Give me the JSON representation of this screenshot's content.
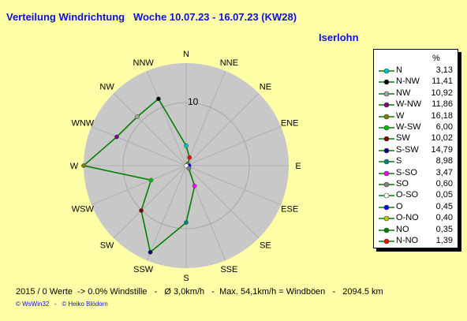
{
  "header": {
    "title": "Verteilung Windrichtung   Woche 10.07.23 - 16.07.23 (KW28)",
    "location": "Iserlohn"
  },
  "legend": {
    "pct_header": "%"
  },
  "footer": {
    "text": "2015 / 0 Werte  -> 0.0% Windstille   -   Ø 3,0km/h   -  Max. 54,1km/h = Windböen   -   2094.5 km",
    "copyright": "© WsWin32   -   © Heiko Blödorn"
  },
  "chart_data": {
    "type": "radar",
    "title": "Verteilung Windrichtung   Woche 10.07.23 - 16.07.23 (KW28)",
    "unit": "%",
    "ring_label": "10",
    "rmax": 16.18,
    "line_color": "#008000",
    "categories": [
      "N",
      "NNE",
      "NE",
      "ENE",
      "E",
      "ESE",
      "SE",
      "SSE",
      "S",
      "SSW",
      "SW",
      "WSW",
      "W",
      "WNW",
      "NW",
      "NNW"
    ],
    "values": [
      3.13,
      1.39,
      0.35,
      0.4,
      0.45,
      0.05,
      0.6,
      3.47,
      8.98,
      14.79,
      10.02,
      6.0,
      16.18,
      11.86,
      10.92,
      11.41
    ],
    "legend": [
      {
        "label": "N",
        "value": "3,13",
        "color": "#00c0c0"
      },
      {
        "label": "N-NW",
        "value": "11,41",
        "color": "#000000"
      },
      {
        "label": "NW",
        "value": "10,92",
        "color": "#a0a0a0"
      },
      {
        "label": "W-NW",
        "value": "11,86",
        "color": "#800080"
      },
      {
        "label": "W",
        "value": "16,18",
        "color": "#808000"
      },
      {
        "label": "W-SW",
        "value": "6,00",
        "color": "#00c000"
      },
      {
        "label": "SW",
        "value": "10,02",
        "color": "#800000"
      },
      {
        "label": "S-SW",
        "value": "14,79",
        "color": "#000080"
      },
      {
        "label": "S",
        "value": "8,98",
        "color": "#008080"
      },
      {
        "label": "S-SO",
        "value": "3,47",
        "color": "#ff00ff"
      },
      {
        "label": "SO",
        "value": "0,60",
        "color": "#808080"
      },
      {
        "label": "O-SO",
        "value": "0,05",
        "color": "#ffffff"
      },
      {
        "label": "O",
        "value": "0,45",
        "color": "#0000ff"
      },
      {
        "label": "O-NO",
        "value": "0,40",
        "color": "#c0c000"
      },
      {
        "label": "NO",
        "value": "0,35",
        "color": "#008000"
      },
      {
        "label": "N-NO",
        "value": "1,39",
        "color": "#ff0000"
      }
    ]
  }
}
